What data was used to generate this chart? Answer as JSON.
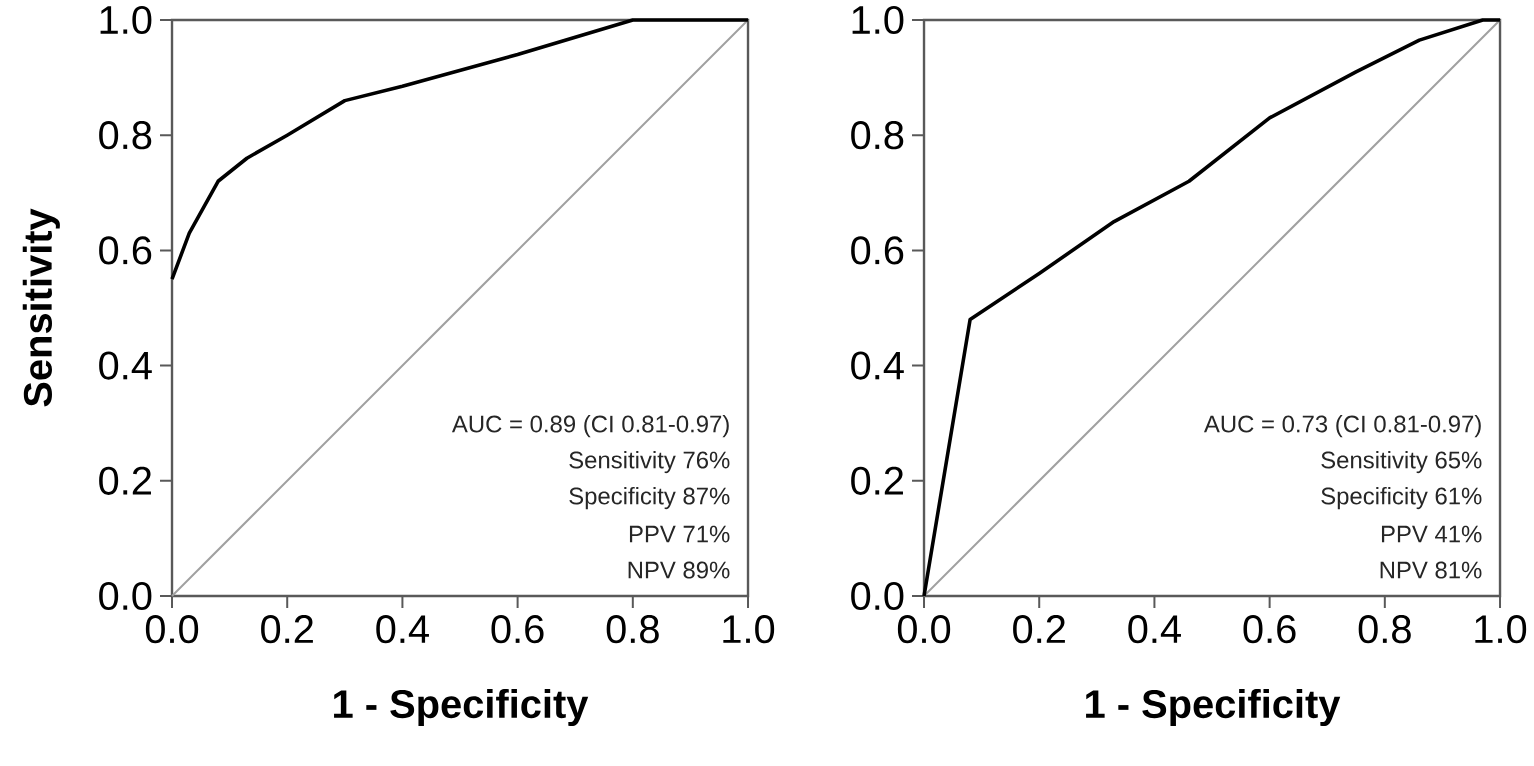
{
  "chart_data": [
    {
      "type": "line",
      "xlabel": "1 - Specificity",
      "ylabel": "Sensitivity",
      "series": [
        {
          "color": "#a0a0a0",
          "x": [
            0,
            1
          ],
          "values": [
            0,
            1
          ]
        },
        {
          "color": "#000000",
          "x": [
            0,
            0.03,
            0.08,
            0.13,
            0.2,
            0.3,
            0.4,
            0.6,
            0.8,
            1.0
          ],
          "values": [
            0.55,
            0.63,
            0.72,
            0.76,
            0.8,
            0.86,
            0.885,
            0.94,
            1.0,
            1.0
          ]
        }
      ],
      "xlim": [
        0,
        1
      ],
      "ylim": [
        0,
        1
      ],
      "xticks": [
        {
          "value": 0,
          "label": "0.0"
        },
        {
          "value": 0.2,
          "label": "0.2"
        },
        {
          "value": 0.4,
          "label": "0.4"
        },
        {
          "value": 0.6,
          "label": "0.6"
        },
        {
          "value": 0.8,
          "label": "0.8"
        },
        {
          "value": 1,
          "label": "1.0"
        }
      ],
      "yticks": [
        {
          "value": 0,
          "label": "0.0"
        },
        {
          "value": 0.2,
          "label": "0.2"
        },
        {
          "value": 0.4,
          "label": "0.4"
        },
        {
          "value": 0.6,
          "label": "0.6"
        },
        {
          "value": 0.8,
          "label": "0.8"
        },
        {
          "value": 1,
          "label": "1.0"
        }
      ],
      "annotations": [
        "AUC = 0.89 (CI 0.81-0.97)",
        "Sensitivity 76%",
        "Specificity 87%",
        "PPV 71%",
        "NPV 89%"
      ],
      "grid": false,
      "marker": "none",
      "line_style": "solid"
    },
    {
      "type": "line",
      "xlabel": "1 - Specificity",
      "series": [
        {
          "color": "#a0a0a0",
          "x": [
            0,
            1
          ],
          "values": [
            0,
            1
          ]
        },
        {
          "color": "#000000",
          "x": [
            0,
            0.08,
            0.2,
            0.33,
            0.46,
            0.6,
            0.75,
            0.86,
            0.97,
            1.0
          ],
          "values": [
            0,
            0.48,
            0.56,
            0.65,
            0.72,
            0.83,
            0.91,
            0.965,
            1.0,
            1.0
          ]
        }
      ],
      "xlim": [
        0,
        1
      ],
      "ylim": [
        0,
        1
      ],
      "xticks": [
        {
          "value": 0,
          "label": "0.0"
        },
        {
          "value": 0.2,
          "label": "0.2"
        },
        {
          "value": 0.4,
          "label": "0.4"
        },
        {
          "value": 0.6,
          "label": "0.6"
        },
        {
          "value": 0.8,
          "label": "0.8"
        },
        {
          "value": 1,
          "label": "1.0"
        }
      ],
      "yticks": [
        {
          "value": 0,
          "label": "0.0"
        },
        {
          "value": 0.2,
          "label": "0.2"
        },
        {
          "value": 0.4,
          "label": "0.4"
        },
        {
          "value": 0.6,
          "label": "0.6"
        },
        {
          "value": 0.8,
          "label": "0.8"
        },
        {
          "value": 1,
          "label": "1.0"
        }
      ],
      "annotations": [
        "AUC = 0.73 (CI 0.81-0.97)",
        "Sensitivity 65%",
        "Specificity 61%",
        "PPV 41%",
        "NPV 81%"
      ],
      "grid": false,
      "marker": "none",
      "line_style": "solid"
    }
  ]
}
